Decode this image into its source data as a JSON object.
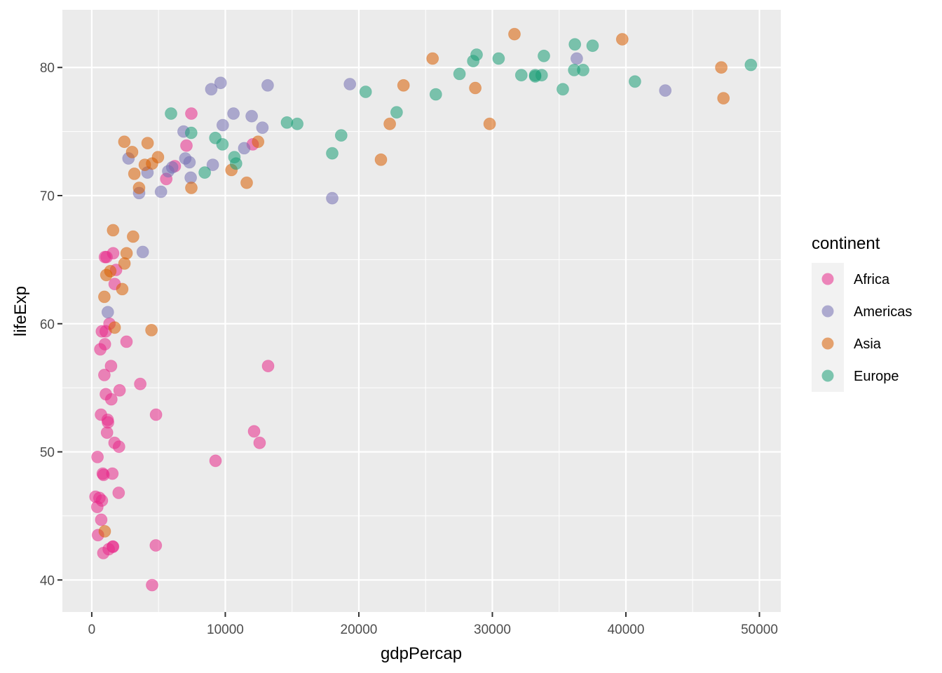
{
  "chart_data": {
    "type": "scatter",
    "title": "",
    "xlabel": "gdpPercap",
    "ylabel": "lifeExp",
    "xlim": [
      -2200,
      51600
    ],
    "ylim": [
      37.5,
      84.5
    ],
    "x_ticks": [
      0,
      10000,
      20000,
      30000,
      40000,
      50000
    ],
    "x_tick_labels": [
      "0",
      "10000",
      "20000",
      "30000",
      "40000",
      "50000"
    ],
    "y_ticks": [
      40,
      50,
      60,
      70,
      80
    ],
    "y_tick_labels": [
      "40",
      "50",
      "60",
      "70",
      "80"
    ],
    "grid": true,
    "legend": {
      "title": "continent",
      "position": "right"
    },
    "point_opacity": 0.55,
    "series": [
      {
        "name": "Africa",
        "color": "#e7298a",
        "points": [
          [
            6223,
            72.3
          ],
          [
            4797,
            42.7
          ],
          [
            1441,
            56.7
          ],
          [
            12570,
            50.7
          ],
          [
            1217,
            52.3
          ],
          [
            430,
            49.6
          ],
          [
            2042,
            50.4
          ],
          [
            706,
            44.7
          ],
          [
            1704,
            50.7
          ],
          [
            986,
            65.2
          ],
          [
            278,
            46.5
          ],
          [
            3633,
            55.3
          ],
          [
            1545,
            48.3
          ],
          [
            2082,
            54.8
          ],
          [
            5581,
            71.3
          ],
          [
            12154,
            51.6
          ],
          [
            641,
            58.0
          ],
          [
            691,
            52.9
          ],
          [
            13206,
            56.7
          ],
          [
            753,
            59.4
          ],
          [
            1327,
            60.0
          ],
          [
            943,
            56.0
          ],
          [
            579,
            46.4
          ],
          [
            1463,
            54.1
          ],
          [
            1569,
            42.6
          ],
          [
            415,
            45.7
          ],
          [
            7092,
            73.9
          ],
          [
            1045,
            59.4
          ],
          [
            824,
            48.3
          ],
          [
            1598,
            65.5
          ],
          [
            12057,
            74.0
          ],
          [
            4518,
            39.6
          ],
          [
            9270,
            49.3
          ],
          [
            2603,
            58.6
          ],
          [
            883,
            48.2
          ],
          [
            760,
            46.2
          ],
          [
            1106,
            65.2
          ],
          [
            863,
            42.1
          ],
          [
            469,
            43.5
          ],
          [
            1593,
            42.6
          ],
          [
            1713,
            63.1
          ],
          [
            4811,
            52.9
          ],
          [
            986,
            58.4
          ],
          [
            7458,
            76.4
          ],
          [
            1056,
            54.5
          ],
          [
            1271,
            42.4
          ],
          [
            2014,
            46.8
          ],
          [
            1820,
            64.2
          ],
          [
            1141,
            51.5
          ],
          [
            1193,
            52.5
          ]
        ]
      },
      {
        "name": "Americas",
        "color": "#7570b3",
        "points": [
          [
            12779,
            75.3
          ],
          [
            3822,
            65.6
          ],
          [
            9066,
            72.4
          ],
          [
            36319,
            80.7
          ],
          [
            13172,
            78.6
          ],
          [
            7007,
            72.9
          ],
          [
            9645,
            78.8
          ],
          [
            8948,
            78.3
          ],
          [
            6025,
            72.2
          ],
          [
            6873,
            75.0
          ],
          [
            5728,
            71.9
          ],
          [
            5186,
            70.3
          ],
          [
            1202,
            60.9
          ],
          [
            3548,
            70.2
          ],
          [
            7321,
            72.6
          ],
          [
            11978,
            76.2
          ],
          [
            2749,
            72.9
          ],
          [
            9809,
            75.5
          ],
          [
            4173,
            71.8
          ],
          [
            7409,
            71.4
          ],
          [
            19329,
            78.7
          ],
          [
            18009,
            69.8
          ],
          [
            42952,
            78.2
          ],
          [
            10611,
            76.4
          ],
          [
            11416,
            73.7
          ]
        ]
      },
      {
        "name": "Asia",
        "color": "#d95f02",
        "points": [
          [
            975,
            43.8
          ],
          [
            29796,
            75.6
          ],
          [
            1391,
            64.1
          ],
          [
            1714,
            59.7
          ],
          [
            4959,
            73.0
          ],
          [
            39725,
            82.2
          ],
          [
            2452,
            64.7
          ],
          [
            3541,
            70.6
          ],
          [
            11606,
            71.0
          ],
          [
            4471,
            59.5
          ],
          [
            25523,
            80.7
          ],
          [
            31656,
            82.6
          ],
          [
            4519,
            72.5
          ],
          [
            1593,
            67.3
          ],
          [
            23348,
            78.6
          ],
          [
            47307,
            77.6
          ],
          [
            10461,
            72.0
          ],
          [
            12452,
            74.2
          ],
          [
            3096,
            66.8
          ],
          [
            944,
            62.1
          ],
          [
            1091,
            63.8
          ],
          [
            22316,
            75.6
          ],
          [
            2606,
            65.5
          ],
          [
            3190,
            71.7
          ],
          [
            21655,
            72.8
          ],
          [
            47143,
            80.0
          ],
          [
            3970,
            72.4
          ],
          [
            4185,
            74.1
          ],
          [
            28718,
            78.4
          ],
          [
            7458,
            70.6
          ],
          [
            2442,
            74.2
          ],
          [
            3025,
            73.4
          ],
          [
            2281,
            62.7
          ]
        ]
      },
      {
        "name": "Europe",
        "color": "#1b9e77",
        "points": [
          [
            5937,
            76.4
          ],
          [
            36126,
            79.8
          ],
          [
            33693,
            79.4
          ],
          [
            7446,
            74.9
          ],
          [
            10681,
            73.0
          ],
          [
            14619,
            75.7
          ],
          [
            22834,
            76.5
          ],
          [
            35278,
            78.3
          ],
          [
            33207,
            79.3
          ],
          [
            30470,
            80.7
          ],
          [
            32170,
            79.4
          ],
          [
            27538,
            79.5
          ],
          [
            18008,
            73.3
          ],
          [
            36181,
            81.8
          ],
          [
            40676,
            78.9
          ],
          [
            28570,
            80.5
          ],
          [
            9254,
            74.5
          ],
          [
            36798,
            79.8
          ],
          [
            49357,
            80.2
          ],
          [
            15390,
            75.6
          ],
          [
            20510,
            78.1
          ],
          [
            10808,
            72.5
          ],
          [
            9786,
            74.0
          ],
          [
            18678,
            74.7
          ],
          [
            25768,
            77.9
          ],
          [
            28821,
            81.0
          ],
          [
            33860,
            80.9
          ],
          [
            37506,
            81.7
          ],
          [
            8458,
            71.8
          ],
          [
            33203,
            79.4
          ]
        ]
      }
    ]
  }
}
